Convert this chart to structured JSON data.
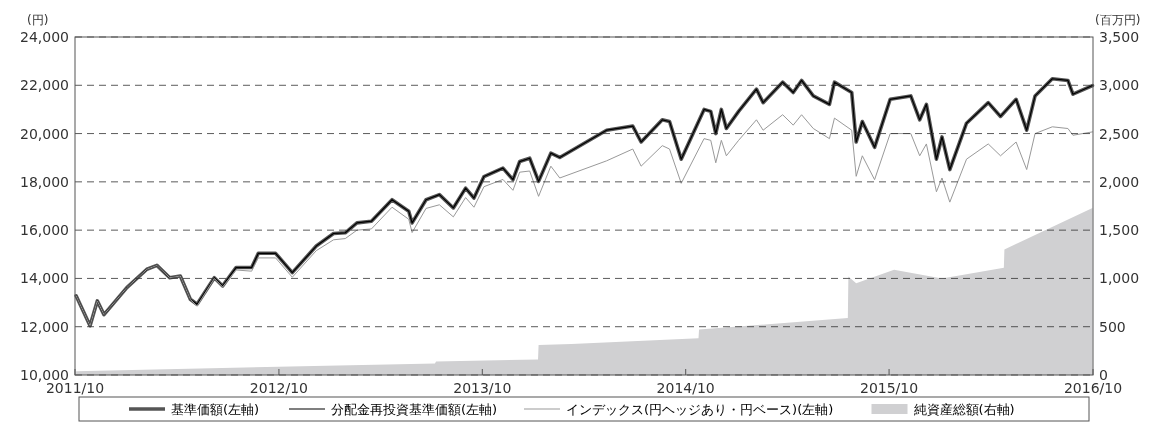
{
  "chart_data": {
    "type": "line",
    "ylabel": "(円)",
    "y2label": "(百万円)",
    "x": [
      "2011-10-03",
      "2011-10-28",
      "2011-11-10",
      "2011-11-22",
      "2012-01-02",
      "2012-02-07",
      "2012-02-25",
      "2012-03-19",
      "2012-04-07",
      "2012-04-25",
      "2012-05-07",
      "2012-06-07",
      "2012-06-22",
      "2012-07-16",
      "2012-08-13",
      "2012-08-25",
      "2012-09-25",
      "2012-10-25",
      "2012-12-07",
      "2013-01-07",
      "2013-01-28",
      "2013-02-18",
      "2013-03-16",
      "2013-04-22",
      "2013-05-22",
      "2013-05-28",
      "2013-06-22",
      "2013-07-16",
      "2013-08-10",
      "2013-09-01",
      "2013-09-16",
      "2013-10-04",
      "2013-11-07",
      "2013-11-25",
      "2013-12-07",
      "2013-12-25",
      "2014-01-10",
      "2014-02-01",
      "2014-02-17",
      "2014-05-12",
      "2014-06-28",
      "2014-07-13",
      "2014-08-20",
      "2014-09-02",
      "2014-09-23",
      "2014-11-03",
      "2014-11-15",
      "2014-11-24",
      "2014-12-04",
      "2014-12-13",
      "2015-01-04",
      "2015-02-05",
      "2015-02-17",
      "2015-03-24",
      "2015-04-12",
      "2015-04-27",
      "2015-05-18",
      "2015-06-16",
      "2015-06-25",
      "2015-07-26",
      "2015-08-03",
      "2015-08-14",
      "2015-09-05",
      "2015-10-03",
      "2015-11-09",
      "2015-11-25",
      "2015-12-07",
      "2015-12-25",
      "2016-01-04",
      "2016-01-18",
      "2016-02-17",
      "2016-03-27",
      "2016-04-18",
      "2016-05-16",
      "2016-06-04",
      "2016-06-19",
      "2016-07-20",
      "2016-08-17",
      "2016-08-26",
      "2016-09-30"
    ],
    "xlim": [
      "2011-10",
      "2016-10"
    ],
    "xticks": [
      {
        "value": "2011-10",
        "label": "2011/10"
      },
      {
        "value": "2012-10",
        "label": "2012/10"
      },
      {
        "value": "2013-10",
        "label": "2013/10"
      },
      {
        "value": "2014-10",
        "label": "2014/10"
      },
      {
        "value": "2015-10",
        "label": "2015/10"
      },
      {
        "value": "2016-10",
        "label": "2016/10"
      }
    ],
    "ylim": [
      10000,
      24000
    ],
    "yticks": [
      {
        "value": 10000,
        "label": "10,000"
      },
      {
        "value": 12000,
        "label": "12,000"
      },
      {
        "value": 14000,
        "label": "14,000"
      },
      {
        "value": 16000,
        "label": "16,000"
      },
      {
        "value": 18000,
        "label": "18,000"
      },
      {
        "value": 20000,
        "label": "20,000"
      },
      {
        "value": 22000,
        "label": "22,000"
      },
      {
        "value": 24000,
        "label": "24,000"
      }
    ],
    "y2lim": [
      0,
      3500
    ],
    "y2ticks": [
      0,
      500,
      {
        "value": 1000,
        "label": "1,000"
      },
      {
        "value": 1500,
        "label": "1,500"
      },
      {
        "value": 2000,
        "label": "2,000"
      },
      {
        "value": 2500,
        "label": "2,500"
      },
      {
        "value": 3000,
        "label": "3,000"
      },
      {
        "value": 3500,
        "label": "3,500"
      }
    ],
    "grid": "y",
    "legend": "bottom",
    "series": [
      {
        "name": "基準価額(左軸)",
        "color": "#555555",
        "values": [
          13280,
          12040,
          13070,
          12500,
          13620,
          14380,
          14540,
          14030,
          14100,
          13140,
          12930,
          14030,
          13690,
          14450,
          14450,
          15040,
          15040,
          14240,
          15340,
          15860,
          15890,
          16300,
          16370,
          17260,
          16780,
          16300,
          17260,
          17470,
          16920,
          17740,
          17330,
          18220,
          18570,
          18090,
          18840,
          18980,
          18020,
          19190,
          19010,
          20140,
          20310,
          19650,
          20570,
          20500,
          18940,
          21000,
          20920,
          20000,
          21000,
          20210,
          20920,
          21840,
          21280,
          22130,
          21700,
          22200,
          21560,
          21210,
          22130,
          21700,
          19650,
          20500,
          19430,
          21420,
          21560,
          20570,
          21210,
          18940,
          19860,
          18510,
          20430,
          21280,
          20710,
          21420,
          20140,
          21560,
          22270,
          22200,
          21630,
          21990
        ]
      },
      {
        "name": "分配金再投資基準価額(左軸)",
        "color": "#000000",
        "values": [
          13280,
          12040,
          13070,
          12500,
          13620,
          14380,
          14540,
          14030,
          14100,
          13140,
          12930,
          14030,
          13690,
          14450,
          14450,
          15040,
          15040,
          14240,
          15340,
          15860,
          15890,
          16300,
          16370,
          17260,
          16780,
          16300,
          17260,
          17470,
          16920,
          17740,
          17330,
          18220,
          18570,
          18090,
          18840,
          18980,
          18020,
          19190,
          19010,
          20140,
          20310,
          19650,
          20570,
          20500,
          18940,
          21000,
          20920,
          20000,
          21000,
          20210,
          20920,
          21840,
          21280,
          22130,
          21700,
          22200,
          21560,
          21210,
          22130,
          21700,
          19650,
          20500,
          19430,
          21420,
          21560,
          20570,
          21210,
          18940,
          19860,
          18510,
          20430,
          21280,
          20710,
          21420,
          20140,
          21560,
          22270,
          22200,
          21630,
          21990
        ]
      },
      {
        "name": "インデックス(円ヘッジあり・円ベース)(左軸)",
        "color": "#999999",
        "values": [
          13280,
          12040,
          13070,
          12500,
          13620,
          14380,
          14540,
          14030,
          14100,
          13140,
          12850,
          14000,
          13650,
          14350,
          14300,
          14850,
          14850,
          14050,
          15150,
          15600,
          15650,
          16000,
          16050,
          16950,
          16450,
          15900,
          16900,
          17050,
          16550,
          17350,
          16950,
          17800,
          18100,
          17650,
          18400,
          18450,
          17400,
          18650,
          18160,
          18870,
          19360,
          18650,
          19500,
          19360,
          17940,
          19790,
          19720,
          18790,
          19720,
          19080,
          19720,
          20570,
          20140,
          20780,
          20350,
          20780,
          20210,
          19790,
          20640,
          20140,
          18230,
          19080,
          18090,
          20000,
          20000,
          19080,
          19570,
          17590,
          18160,
          17160,
          18940,
          19570,
          19080,
          19650,
          18510,
          20000,
          20280,
          20210,
          19930,
          20070
        ]
      },
      {
        "name": "純資産総額(右軸)",
        "type": "area",
        "axis": "y2",
        "color": "#d0d0d2",
        "x": [
          "2011-10-03",
          "2013-07-08",
          "2013-07-10",
          "2014-01-09",
          "2014-01-10",
          "2014-03-10",
          "2014-10-24",
          "2014-10-25",
          "2015-07-19",
          "2015-07-20",
          "2015-08-03",
          "2015-10-10",
          "2016-01-04",
          "2016-04-24",
          "2016-04-25",
          "2016-09-30"
        ],
        "values": [
          40,
          120,
          140,
          160,
          310,
          320,
          380,
          470,
          590,
          1020,
          950,
          1090,
          1000,
          1110,
          1300,
          1730
        ]
      }
    ]
  }
}
